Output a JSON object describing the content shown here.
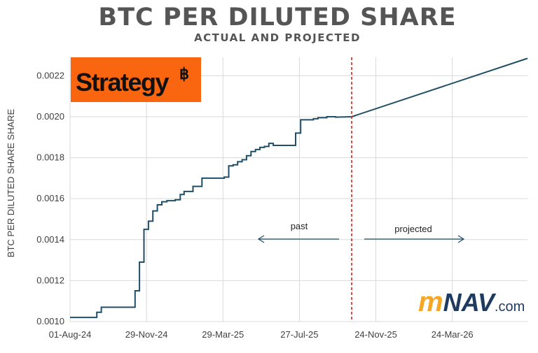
{
  "chart_data": {
    "type": "line",
    "title": "BTC PER DILUTED SHARE",
    "subtitle": "ACTUAL AND PROJECTED",
    "ylabel": "BTC PER DILUTED SHARE SHARE",
    "xlabel": "",
    "ylim": [
      0.001,
      0.00229
    ],
    "xlim": [
      "2024-08-01",
      "2026-07-20"
    ],
    "grid": true,
    "x_tick_labels": [
      "01-Aug-24",
      "29-Nov-24",
      "29-Mar-25",
      "27-Jul-25",
      "24-Nov-25",
      "24-Mar-26"
    ],
    "x_tick_dates": [
      "2024-08-01",
      "2024-11-29",
      "2025-03-29",
      "2025-07-27",
      "2025-11-24",
      "2026-03-24"
    ],
    "y_ticks": [
      0.001,
      0.0012,
      0.0014,
      0.0016,
      0.0018,
      0.002,
      0.0022
    ],
    "y_tick_labels": [
      "0.0010",
      "0.0012",
      "0.0014",
      "0.0016",
      "0.0018",
      "0.0020",
      "0.0022"
    ],
    "divider_date": "2025-10-17",
    "series": [
      {
        "style": "step",
        "color": "#1f4e66",
        "points": [
          [
            "2024-08-01",
            0.00102
          ],
          [
            "2024-09-12",
            0.00102
          ],
          [
            "2024-09-12",
            0.001045
          ],
          [
            "2024-09-19",
            0.001045
          ],
          [
            "2024-09-19",
            0.00107
          ],
          [
            "2024-11-11",
            0.00107
          ],
          [
            "2024-11-11",
            0.00115
          ],
          [
            "2024-11-18",
            0.00115
          ],
          [
            "2024-11-18",
            0.00129
          ],
          [
            "2024-11-25",
            0.00129
          ],
          [
            "2024-11-25",
            0.00145
          ],
          [
            "2024-12-02",
            0.00145
          ],
          [
            "2024-12-02",
            0.00149
          ],
          [
            "2024-12-09",
            0.00149
          ],
          [
            "2024-12-09",
            0.00154
          ],
          [
            "2024-12-16",
            0.00154
          ],
          [
            "2024-12-16",
            0.00157
          ],
          [
            "2024-12-23",
            0.00157
          ],
          [
            "2024-12-23",
            0.001585
          ],
          [
            "2024-12-31",
            0.001585
          ],
          [
            "2024-12-31",
            0.00159
          ],
          [
            "2025-01-13",
            0.00159
          ],
          [
            "2025-01-13",
            0.001595
          ],
          [
            "2025-01-21",
            0.001595
          ],
          [
            "2025-01-21",
            0.00162
          ],
          [
            "2025-01-27",
            0.00162
          ],
          [
            "2025-01-27",
            0.001635
          ],
          [
            "2025-02-10",
            0.001635
          ],
          [
            "2025-02-10",
            0.00166
          ],
          [
            "2025-02-24",
            0.00166
          ],
          [
            "2025-02-24",
            0.0017
          ],
          [
            "2025-03-31",
            0.0017
          ],
          [
            "2025-03-31",
            0.001705
          ],
          [
            "2025-04-07",
            0.001705
          ],
          [
            "2025-04-07",
            0.00176
          ],
          [
            "2025-04-14",
            0.00176
          ],
          [
            "2025-04-14",
            0.001765
          ],
          [
            "2025-04-21",
            0.001765
          ],
          [
            "2025-04-21",
            0.00178
          ],
          [
            "2025-04-28",
            0.00178
          ],
          [
            "2025-04-28",
            0.00179
          ],
          [
            "2025-05-05",
            0.00179
          ],
          [
            "2025-05-05",
            0.00181
          ],
          [
            "2025-05-12",
            0.00181
          ],
          [
            "2025-05-12",
            0.00183
          ],
          [
            "2025-05-19",
            0.00183
          ],
          [
            "2025-05-19",
            0.00184
          ],
          [
            "2025-05-26",
            0.00184
          ],
          [
            "2025-05-26",
            0.00185
          ],
          [
            "2025-06-02",
            0.00185
          ],
          [
            "2025-06-02",
            0.001855
          ],
          [
            "2025-06-09",
            0.001855
          ],
          [
            "2025-06-09",
            0.00187
          ],
          [
            "2025-06-16",
            0.00187
          ],
          [
            "2025-06-16",
            0.00186
          ],
          [
            "2025-07-21",
            0.00186
          ],
          [
            "2025-07-21",
            0.00192
          ],
          [
            "2025-07-29",
            0.00192
          ],
          [
            "2025-07-29",
            0.001985
          ],
          [
            "2025-08-18",
            0.001985
          ],
          [
            "2025-08-18",
            0.00199
          ],
          [
            "2025-08-25",
            0.00199
          ],
          [
            "2025-08-25",
            0.001995
          ],
          [
            "2025-09-08",
            0.001995
          ],
          [
            "2025-09-08",
            0.002
          ],
          [
            "2025-09-22",
            0.002
          ],
          [
            "2025-09-22",
            0.001998
          ],
          [
            "2025-10-17",
            0.002
          ]
        ]
      },
      {
        "style": "line",
        "color": "#1f4e66",
        "points": [
          [
            "2025-10-17",
            0.002
          ],
          [
            "2026-07-20",
            0.002285
          ]
        ]
      }
    ],
    "annotations": [
      {
        "text": "past",
        "arrow": "left"
      },
      {
        "text": "projected",
        "arrow": "right"
      }
    ]
  },
  "logos": {
    "strategy": {
      "text": "Strategy",
      "symbol": "฿",
      "background": "#fa660f"
    },
    "mnav": {
      "m": "m",
      "nav": "NAV",
      "com": ".com",
      "m_color": "#f5a623",
      "nav_color": "#1f3a5f"
    }
  }
}
